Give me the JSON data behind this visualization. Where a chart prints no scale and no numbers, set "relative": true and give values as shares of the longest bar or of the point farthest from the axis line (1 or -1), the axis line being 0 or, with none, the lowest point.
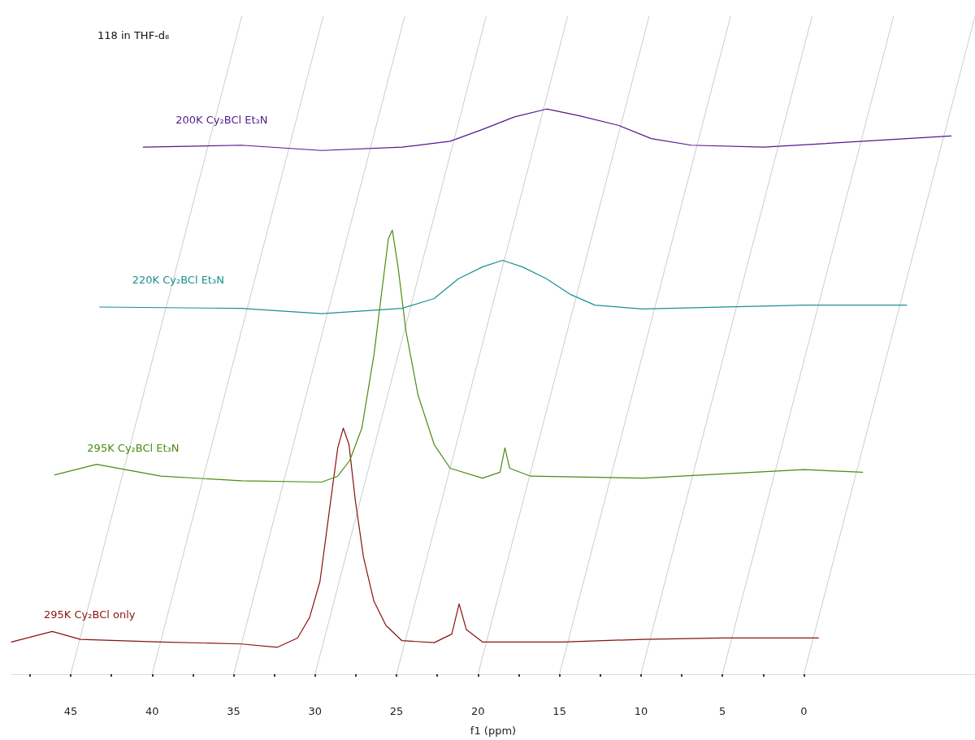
{
  "chart_data": {
    "type": "line",
    "title": "118 in THF-d₈",
    "xlabel": "f1 (ppm)",
    "relative": true,
    "marker": "none",
    "legend": false,
    "xlim": [
      48.64,
      -10.5
    ],
    "xticks": [
      {
        "value": 47.5,
        "label": null
      },
      45,
      {
        "value": 42.5,
        "label": null
      },
      40,
      {
        "value": 37.5,
        "label": null
      },
      35,
      {
        "value": 32.5,
        "label": null
      },
      30,
      {
        "value": 27.5,
        "label": null
      },
      25,
      {
        "value": 22.5,
        "label": null
      },
      20,
      {
        "value": 17.5,
        "label": null
      },
      15,
      {
        "value": 12.5,
        "label": null
      },
      10,
      {
        "value": 7.5,
        "label": null
      },
      5,
      {
        "value": 2.5,
        "label": null
      },
      0
    ],
    "series": [
      {
        "name": "295K Cy₂BCl only",
        "color": "#8b1111",
        "x": [
          48.64,
          46.13,
          44.4,
          39.47,
          34.53,
          32.31,
          31.08,
          30.34,
          29.7,
          29.11,
          28.61,
          28.27,
          27.92,
          27.53,
          27.03,
          26.39,
          25.65,
          24.67,
          22.69,
          21.61,
          21.16,
          20.72,
          19.73,
          14.8,
          9.87,
          4.93,
          -0.89
        ],
        "values": [
          0.049,
          0.065,
          0.053,
          0.049,
          0.046,
          0.041,
          0.055,
          0.086,
          0.141,
          0.251,
          0.344,
          0.374,
          0.349,
          0.264,
          0.178,
          0.111,
          0.074,
          0.051,
          0.048,
          0.061,
          0.107,
          0.068,
          0.049,
          0.049,
          0.053,
          0.055,
          0.055
        ]
      },
      {
        "name": "295K Cy₂BCl Et₃N",
        "color": "#4b8b12",
        "x": [
          45.98,
          43.41,
          39.47,
          34.53,
          29.6,
          28.61,
          27.87,
          27.13,
          26.39,
          25.9,
          25.5,
          25.26,
          24.91,
          24.42,
          23.68,
          22.69,
          21.71,
          19.73,
          18.65,
          18.35,
          18.06,
          16.77,
          9.87,
          0,
          -3.6
        ],
        "values": [
          0.303,
          0.319,
          0.301,
          0.294,
          0.292,
          0.301,
          0.325,
          0.374,
          0.485,
          0.583,
          0.662,
          0.675,
          0.619,
          0.521,
          0.424,
          0.349,
          0.313,
          0.298,
          0.307,
          0.344,
          0.313,
          0.301,
          0.298,
          0.311,
          0.307
        ]
      },
      {
        "name": "220K Cy₂BCl Et₃N",
        "color": "#1b9090",
        "x": [
          43.22,
          34.53,
          29.6,
          24.67,
          22.69,
          21.21,
          19.73,
          18.5,
          17.27,
          15.79,
          14.31,
          12.83,
          9.87,
          0,
          -6.31
        ],
        "values": [
          0.558,
          0.556,
          0.548,
          0.556,
          0.571,
          0.601,
          0.619,
          0.629,
          0.619,
          0.601,
          0.577,
          0.561,
          0.555,
          0.561,
          0.561
        ]
      },
      {
        "name": "200K Cy₂BCl Et₃N",
        "color": "#52198b",
        "x": [
          40.55,
          34.53,
          29.6,
          24.67,
          21.71,
          19.73,
          17.76,
          15.79,
          13.81,
          11.35,
          9.37,
          6.91,
          2.47,
          -9.03
        ],
        "values": [
          0.801,
          0.804,
          0.796,
          0.801,
          0.81,
          0.828,
          0.847,
          0.859,
          0.849,
          0.834,
          0.814,
          0.804,
          0.801,
          0.818
        ]
      },
      {
        "color": "#cccccc",
        "x": [
          45,
          34.5
        ],
        "values": [
          0,
          1
        ]
      },
      {
        "color": "#cccccc",
        "x": [
          40,
          29.5
        ],
        "values": [
          0,
          1
        ]
      },
      {
        "color": "#cccccc",
        "x": [
          35,
          24.5
        ],
        "values": [
          0,
          1
        ]
      },
      {
        "color": "#cccccc",
        "x": [
          30,
          19.5
        ],
        "values": [
          0,
          1
        ]
      },
      {
        "color": "#cccccc",
        "x": [
          25,
          14.5
        ],
        "values": [
          0,
          1
        ]
      },
      {
        "color": "#cccccc",
        "x": [
          20,
          9.5
        ],
        "values": [
          0,
          1
        ]
      },
      {
        "color": "#cccccc",
        "x": [
          15,
          4.5
        ],
        "values": [
          0,
          1
        ]
      },
      {
        "color": "#cccccc",
        "x": [
          10,
          -0.5
        ],
        "values": [
          0,
          1
        ]
      },
      {
        "color": "#cccccc",
        "x": [
          5,
          -5.5
        ],
        "values": [
          0,
          1
        ]
      },
      {
        "color": "#cccccc",
        "x": [
          0,
          -10.5
        ],
        "values": [
          0,
          1
        ]
      }
    ]
  }
}
